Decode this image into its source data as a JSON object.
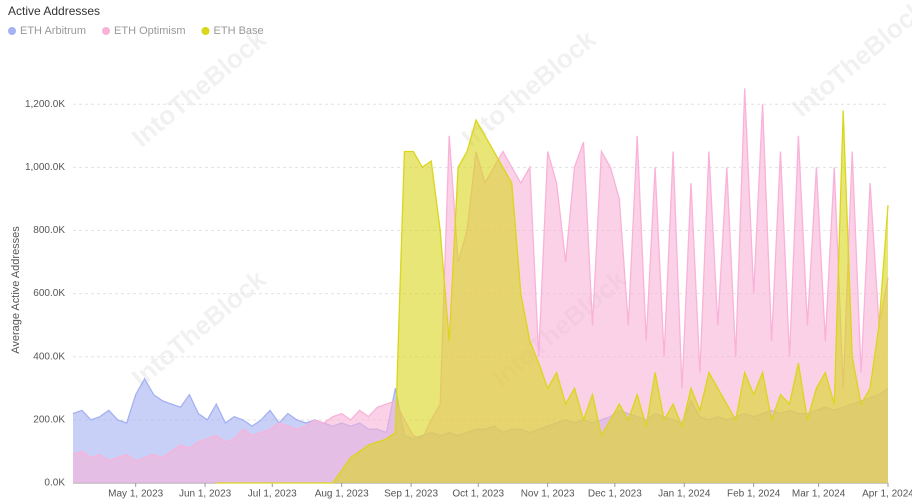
{
  "chart_data": {
    "type": "area",
    "title": "Active Addresses",
    "y_label": "Average Active Addresses",
    "watermark": "IntoTheBlock",
    "x": [
      "2023-04-03",
      "2023-04-07",
      "2023-04-11",
      "2023-04-15",
      "2023-04-19",
      "2023-04-23",
      "2023-04-27",
      "2023-05-01",
      "2023-05-05",
      "2023-05-09",
      "2023-05-13",
      "2023-05-17",
      "2023-05-21",
      "2023-05-25",
      "2023-05-29",
      "2023-06-02",
      "2023-06-06",
      "2023-06-10",
      "2023-06-14",
      "2023-06-18",
      "2023-06-22",
      "2023-06-26",
      "2023-06-30",
      "2023-07-04",
      "2023-07-08",
      "2023-07-12",
      "2023-07-16",
      "2023-07-20",
      "2023-07-24",
      "2023-07-28",
      "2023-08-01",
      "2023-08-05",
      "2023-08-09",
      "2023-08-13",
      "2023-08-17",
      "2023-08-21",
      "2023-08-25",
      "2023-08-29",
      "2023-09-02",
      "2023-09-06",
      "2023-09-10",
      "2023-09-14",
      "2023-09-18",
      "2023-09-22",
      "2023-09-26",
      "2023-09-30",
      "2023-10-04",
      "2023-10-08",
      "2023-10-12",
      "2023-10-16",
      "2023-10-20",
      "2023-10-24",
      "2023-10-28",
      "2023-11-01",
      "2023-11-05",
      "2023-11-09",
      "2023-11-13",
      "2023-11-17",
      "2023-11-21",
      "2023-11-25",
      "2023-11-29",
      "2023-12-03",
      "2023-12-07",
      "2023-12-11",
      "2023-12-15",
      "2023-12-19",
      "2023-12-23",
      "2023-12-27",
      "2023-12-31",
      "2024-01-04",
      "2024-01-08",
      "2024-01-12",
      "2024-01-16",
      "2024-01-20",
      "2024-01-24",
      "2024-01-28",
      "2024-02-01",
      "2024-02-05",
      "2024-02-09",
      "2024-02-13",
      "2024-02-17",
      "2024-02-21",
      "2024-02-25",
      "2024-02-29",
      "2024-03-04",
      "2024-03-08",
      "2024-03-12",
      "2024-03-16",
      "2024-03-20",
      "2024-03-24",
      "2024-03-28",
      "2024-04-01"
    ],
    "series": [
      {
        "name": "ETH Arbitrum",
        "color": "#a4b1f2",
        "values": [
          220000,
          230000,
          200000,
          210000,
          230000,
          200000,
          190000,
          280000,
          330000,
          280000,
          260000,
          250000,
          240000,
          280000,
          220000,
          200000,
          250000,
          190000,
          210000,
          200000,
          180000,
          200000,
          230000,
          190000,
          220000,
          200000,
          190000,
          200000,
          190000,
          180000,
          190000,
          180000,
          190000,
          170000,
          170000,
          160000,
          300000,
          150000,
          140000,
          150000,
          160000,
          150000,
          160000,
          150000,
          160000,
          170000,
          170000,
          180000,
          160000,
          170000,
          170000,
          160000,
          170000,
          180000,
          190000,
          200000,
          190000,
          200000,
          190000,
          200000,
          210000,
          230000,
          220000,
          210000,
          200000,
          220000,
          210000,
          200000,
          190000,
          260000,
          210000,
          200000,
          210000,
          200000,
          210000,
          220000,
          210000,
          220000,
          230000,
          220000,
          230000,
          220000,
          220000,
          230000,
          240000,
          230000,
          240000,
          250000,
          260000,
          270000,
          280000,
          300000
        ]
      },
      {
        "name": "ETH Optimism",
        "color": "#f9b2d8",
        "values": [
          90000,
          100000,
          80000,
          90000,
          70000,
          80000,
          90000,
          70000,
          80000,
          90000,
          80000,
          100000,
          120000,
          110000,
          130000,
          140000,
          150000,
          130000,
          140000,
          170000,
          150000,
          160000,
          170000,
          190000,
          180000,
          170000,
          180000,
          200000,
          190000,
          210000,
          220000,
          200000,
          230000,
          210000,
          240000,
          250000,
          260000,
          200000,
          150000,
          140000,
          200000,
          250000,
          1100000,
          700000,
          800000,
          1050000,
          950000,
          1000000,
          1050000,
          1000000,
          950000,
          1000000,
          400000,
          1050000,
          950000,
          700000,
          1000000,
          1080000,
          500000,
          1050000,
          1000000,
          900000,
          500000,
          1100000,
          450000,
          1000000,
          400000,
          1050000,
          300000,
          950000,
          350000,
          1050000,
          500000,
          1000000,
          400000,
          1250000,
          600000,
          1200000,
          450000,
          1050000,
          400000,
          1100000,
          500000,
          1000000,
          450000,
          1000000,
          300000,
          1050000,
          350000,
          950000,
          500000,
          650000
        ]
      },
      {
        "name": "ETH Base",
        "color": "#d9d61c",
        "values": [
          null,
          null,
          null,
          null,
          null,
          null,
          null,
          null,
          null,
          null,
          null,
          null,
          null,
          null,
          null,
          null,
          0,
          0,
          0,
          0,
          0,
          0,
          0,
          0,
          0,
          0,
          0,
          0,
          0,
          0,
          40000,
          80000,
          100000,
          120000,
          130000,
          140000,
          160000,
          1050000,
          1050000,
          1000000,
          1020000,
          800000,
          450000,
          1000000,
          1050000,
          1150000,
          1100000,
          1050000,
          1000000,
          950000,
          600000,
          450000,
          380000,
          300000,
          350000,
          250000,
          300000,
          200000,
          280000,
          150000,
          200000,
          250000,
          200000,
          280000,
          180000,
          350000,
          200000,
          250000,
          180000,
          300000,
          230000,
          350000,
          300000,
          250000,
          200000,
          350000,
          280000,
          350000,
          200000,
          280000,
          250000,
          380000,
          200000,
          300000,
          350000,
          250000,
          1180000,
          400000,
          250000,
          300000,
          500000,
          880000
        ]
      }
    ],
    "xlim": [
      "2023-04-03",
      "2024-04-01"
    ],
    "xticks": [
      {
        "value": "2023-05-01",
        "label": "May 1, 2023"
      },
      {
        "value": "2023-06-01",
        "label": "Jun 1, 2023"
      },
      {
        "value": "2023-07-01",
        "label": "Jul 1, 2023"
      },
      {
        "value": "2023-08-01",
        "label": "Aug 1, 2023"
      },
      {
        "value": "2023-09-01",
        "label": "Sep 1, 2023"
      },
      {
        "value": "2023-10-01",
        "label": "Oct 1, 2023"
      },
      {
        "value": "2023-11-01",
        "label": "Nov 1, 2023"
      },
      {
        "value": "2023-12-01",
        "label": "Dec 1, 2023"
      },
      {
        "value": "2024-01-01",
        "label": "Jan 1, 2024"
      },
      {
        "value": "2024-02-01",
        "label": "Feb 1, 2024"
      },
      {
        "value": "2024-03-01",
        "label": "Mar 1, 2024"
      },
      {
        "value": "2024-04-01",
        "label": "Apr 1, 2024"
      }
    ],
    "ylim": [
      0,
      1340000
    ],
    "yticks": [
      {
        "value": 0,
        "label": "0.0K"
      },
      {
        "value": 200000,
        "label": "200.0K"
      },
      {
        "value": 400000,
        "label": "400.0K"
      },
      {
        "value": 600000,
        "label": "600.0K"
      },
      {
        "value": 800000,
        "label": "800.0K"
      },
      {
        "value": 1000000,
        "label": "1,000.0K"
      },
      {
        "value": 1200000,
        "label": "1,200.0K"
      }
    ],
    "grid": true
  }
}
